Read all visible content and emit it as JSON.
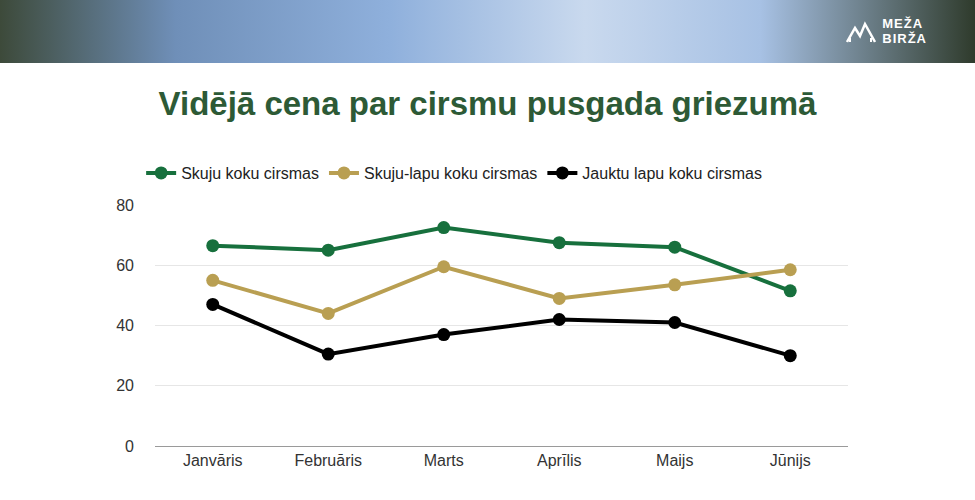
{
  "header": {
    "logo": [
      "MEŽA",
      "BIRŽA"
    ]
  },
  "chart_data": {
    "type": "line",
    "title": "Vidējā cena par cirsmu pusgada griezumā",
    "categories": [
      "Janvāris",
      "Februāris",
      "Marts",
      "Aprīlis",
      "Maijs",
      "Jūnijs"
    ],
    "series": [
      {
        "name": "Skuju koku cirsmas",
        "color": "#17703d",
        "values": [
          66.5,
          65,
          72.5,
          67.5,
          66,
          51.5
        ]
      },
      {
        "name": "Skuju-lapu koku cirsmas",
        "color": "#b99f52",
        "values": [
          55,
          44,
          59.5,
          49,
          53.5,
          58.5
        ]
      },
      {
        "name": "Jauktu lapu koku cirsmas",
        "color": "#000000",
        "values": [
          47,
          30.5,
          37,
          42,
          41,
          30
        ]
      }
    ],
    "ylim": [
      0,
      80
    ],
    "yticks": [
      0,
      20,
      40,
      60,
      80
    ],
    "grid": true,
    "legend": "top",
    "marker": "circle",
    "line_style": "solid"
  }
}
